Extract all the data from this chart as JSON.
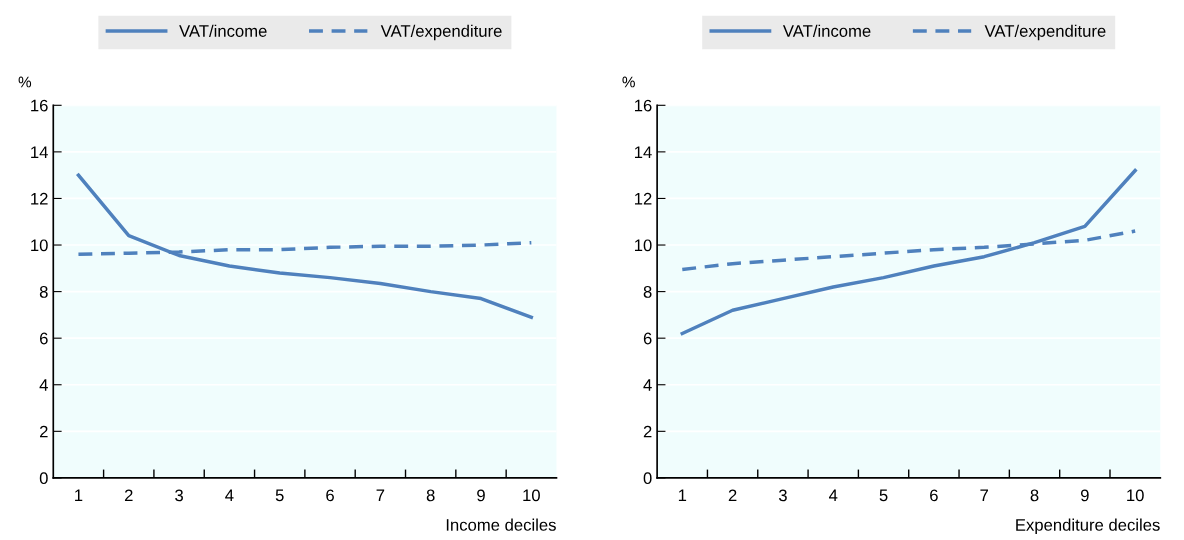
{
  "chart_data": [
    {
      "type": "line",
      "ylabel": "%",
      "xlabel": "Income deciles",
      "categories": [
        "1",
        "2",
        "3",
        "4",
        "5",
        "6",
        "7",
        "8",
        "9",
        "10"
      ],
      "ylim": [
        0,
        16
      ],
      "yticks": [
        0,
        2,
        4,
        6,
        8,
        10,
        12,
        14,
        16
      ],
      "grid": "y",
      "legend": "top",
      "series": [
        {
          "name": "VAT/income",
          "color": "#4f81bd",
          "line_style": "solid",
          "values": [
            13.0,
            10.4,
            9.55,
            9.1,
            8.8,
            8.6,
            8.35,
            8.0,
            7.7,
            6.9
          ]
        },
        {
          "name": "VAT/expenditure",
          "color": "#4f81bd",
          "line_style": "dashed",
          "values": [
            9.6,
            9.65,
            9.7,
            9.8,
            9.8,
            9.9,
            9.95,
            9.95,
            10.0,
            10.1
          ]
        }
      ]
    },
    {
      "type": "line",
      "ylabel": "%",
      "xlabel": "Expenditure deciles",
      "categories": [
        "1",
        "2",
        "3",
        "4",
        "5",
        "6",
        "7",
        "8",
        "9",
        "10"
      ],
      "ylim": [
        0,
        16
      ],
      "yticks": [
        0,
        2,
        4,
        6,
        8,
        10,
        12,
        14,
        16
      ],
      "grid": "y",
      "legend": "top",
      "series": [
        {
          "name": "VAT/income",
          "color": "#4f81bd",
          "line_style": "solid",
          "values": [
            6.2,
            7.2,
            7.7,
            8.2,
            8.6,
            9.1,
            9.5,
            10.1,
            10.8,
            13.2
          ]
        },
        {
          "name": "VAT/expenditure",
          "color": "#4f81bd",
          "line_style": "dashed",
          "values": [
            8.95,
            9.2,
            9.35,
            9.5,
            9.65,
            9.8,
            9.9,
            10.05,
            10.2,
            10.6
          ]
        }
      ]
    }
  ]
}
